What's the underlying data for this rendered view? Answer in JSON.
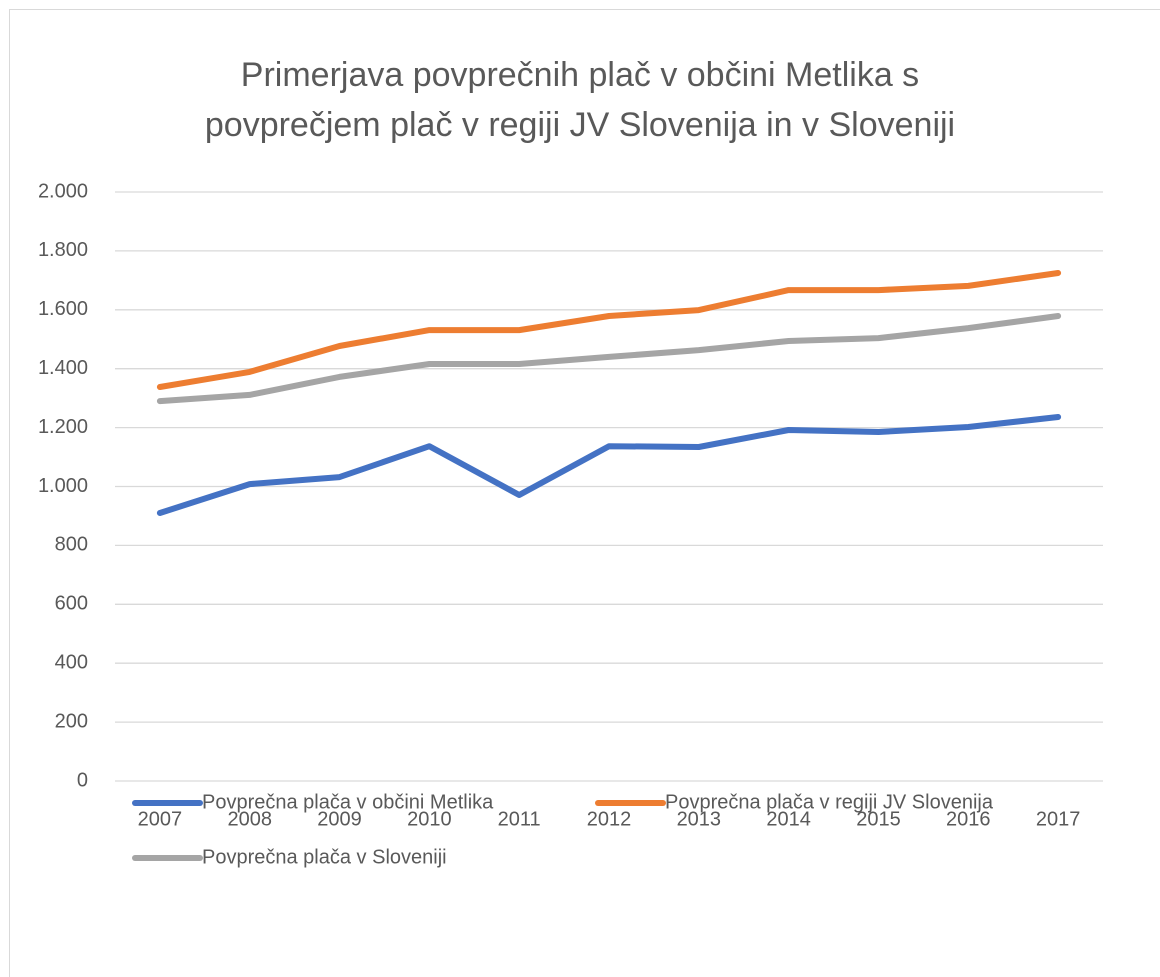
{
  "chart_data": {
    "type": "line",
    "title": "Primerjava povprečnih plač v občini Metlika s povprečjem plač v regiji JV Slovenija in v Sloveniji",
    "categories": [
      "2007",
      "2008",
      "2009",
      "2010",
      "2011",
      "2012",
      "2013",
      "2014",
      "2015",
      "2016",
      "2017"
    ],
    "series": [
      {
        "name": "Povprečna plača v občini Metlika",
        "color": "#4472c4",
        "values": [
          910,
          1008,
          1032,
          1137,
          971,
          1137,
          1134,
          1192,
          1185,
          1202,
          1236
        ]
      },
      {
        "name": "Povprečna plača v regiji JV Slovenija",
        "color": "#ed7d31",
        "values": [
          1338,
          1389,
          1477,
          1531,
          1531,
          1579,
          1599,
          1667,
          1667,
          1681,
          1725
        ]
      },
      {
        "name": "Povprečna plača v Sloveniji",
        "color": "#a5a5a5",
        "values": [
          1290,
          1311,
          1372,
          1416,
          1416,
          1440,
          1463,
          1494,
          1504,
          1538,
          1579
        ]
      }
    ],
    "ylim": [
      0,
      2000
    ],
    "yticks": [
      0,
      200,
      400,
      600,
      800,
      {
        "value": 1000,
        "label": "1.000"
      },
      {
        "value": 1200,
        "label": "1.200"
      },
      {
        "value": 1400,
        "label": "1.400"
      },
      {
        "value": 1600,
        "label": "1.600"
      },
      {
        "value": 1800,
        "label": "1.800"
      },
      {
        "value": 2000,
        "label": "2.000"
      }
    ],
    "grid": true,
    "legend": "bottom"
  }
}
